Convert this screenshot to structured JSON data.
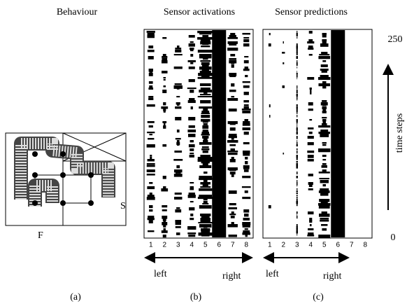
{
  "behaviour": {
    "title": "Behaviour",
    "start_label": "S",
    "finish_label": "F",
    "caption": "(a)"
  },
  "activations": {
    "title": "Sensor activations",
    "columns": [
      "1",
      "2",
      "3",
      "4",
      "5",
      "6",
      "7",
      "8"
    ],
    "left": "left",
    "right": "right",
    "caption": "(b)"
  },
  "predictions": {
    "title": "Sensor predictions",
    "columns": [
      "1",
      "2",
      "3",
      "4",
      "5",
      "6",
      "7",
      "8"
    ],
    "left": "left",
    "right": "right",
    "caption": "(c)"
  },
  "time_axis": {
    "top": "250",
    "bottom": "0",
    "label": "time steps"
  }
}
